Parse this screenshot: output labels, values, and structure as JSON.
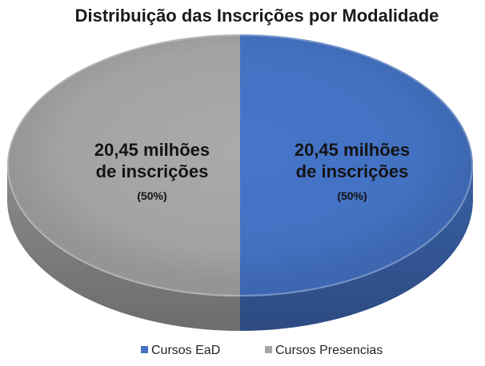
{
  "chart_data": {
    "type": "pie",
    "three_d": true,
    "title": "Distribuição das Inscrições por Modalidade",
    "categories": [
      "Cursos EaD",
      "Cursos Presencias"
    ],
    "values": [
      20.45,
      20.45
    ],
    "percentages": [
      50,
      50
    ],
    "data_labels": [
      {
        "value": "20,45 milhões",
        "unit": "de inscrições",
        "percent": "(50%)"
      },
      {
        "value": "20,45 milhões",
        "unit": "de inscrições",
        "percent": "(50%)"
      }
    ],
    "colors": [
      "#4472C4",
      "#A5A5A5"
    ],
    "legend_position": "bottom"
  }
}
